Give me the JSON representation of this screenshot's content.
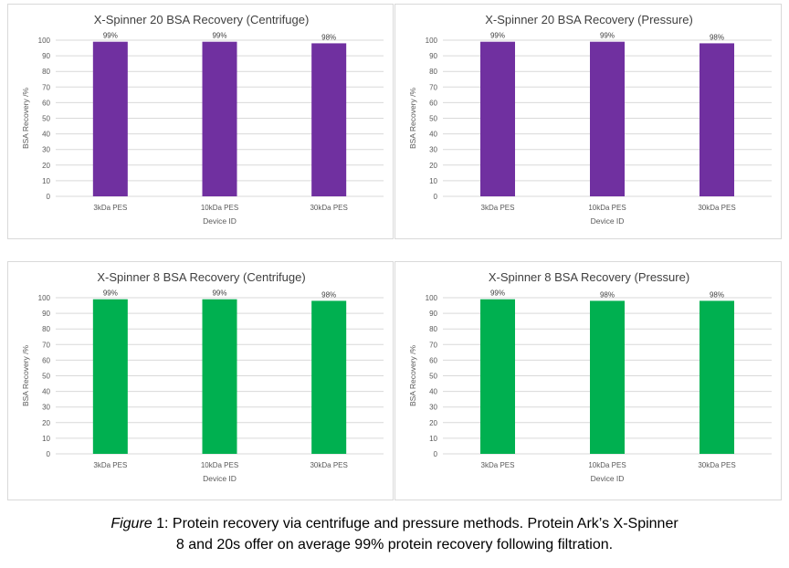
{
  "chart_data": [
    {
      "type": "bar",
      "title": "X-Spinner 20 BSA Recovery (Centrifuge)",
      "xlabel": "Device ID",
      "ylabel": "BSA Recovery /%",
      "categories": [
        "3kDa PES",
        "10kDa PES",
        "30kDa PES"
      ],
      "values": [
        99,
        99,
        98
      ],
      "data_labels": [
        "99%",
        "99%",
        "98%"
      ],
      "ylim": [
        0,
        100
      ],
      "yticks": [
        0,
        10,
        20,
        30,
        40,
        50,
        60,
        70,
        80,
        90,
        100
      ],
      "color": "#7030a0",
      "grid": true
    },
    {
      "type": "bar",
      "title": "X-Spinner 20 BSA Recovery (Pressure)",
      "xlabel": "Device ID",
      "ylabel": "BSA Recovery /%",
      "categories": [
        "3kDa PES",
        "10kDa PES",
        "30kDa PES"
      ],
      "values": [
        99,
        99,
        98
      ],
      "data_labels": [
        "99%",
        "99%",
        "98%"
      ],
      "ylim": [
        0,
        100
      ],
      "yticks": [
        0,
        10,
        20,
        30,
        40,
        50,
        60,
        70,
        80,
        90,
        100
      ],
      "color": "#7030a0",
      "grid": true
    },
    {
      "type": "bar",
      "title": "X-Spinner 8 BSA Recovery (Centrifuge)",
      "xlabel": "Device ID",
      "ylabel": "BSA Recovery /%",
      "categories": [
        "3kDa PES",
        "10kDa PES",
        "30kDa PES"
      ],
      "values": [
        99,
        99,
        98
      ],
      "data_labels": [
        "99%",
        "99%",
        "98%"
      ],
      "ylim": [
        0,
        100
      ],
      "yticks": [
        0,
        10,
        20,
        30,
        40,
        50,
        60,
        70,
        80,
        90,
        100
      ],
      "color": "#00b050",
      "grid": true
    },
    {
      "type": "bar",
      "title": "X-Spinner 8 BSA Recovery (Pressure)",
      "xlabel": "Device ID",
      "ylabel": "BSA Recovery /%",
      "categories": [
        "3kDa PES",
        "10kDa PES",
        "30kDa PES"
      ],
      "values": [
        99,
        98,
        98
      ],
      "data_labels": [
        "99%",
        "98%",
        "98%"
      ],
      "ylim": [
        0,
        100
      ],
      "yticks": [
        0,
        10,
        20,
        30,
        40,
        50,
        60,
        70,
        80,
        90,
        100
      ],
      "color": "#00b050",
      "grid": true
    }
  ],
  "caption": {
    "figure_word": "Figure",
    "line1_rest": " 1: Protein recovery via centrifuge and pressure methods. Protein Ark’s X-Spinner",
    "line2": "8 and 20s offer on average 99% protein recovery following filtration."
  }
}
